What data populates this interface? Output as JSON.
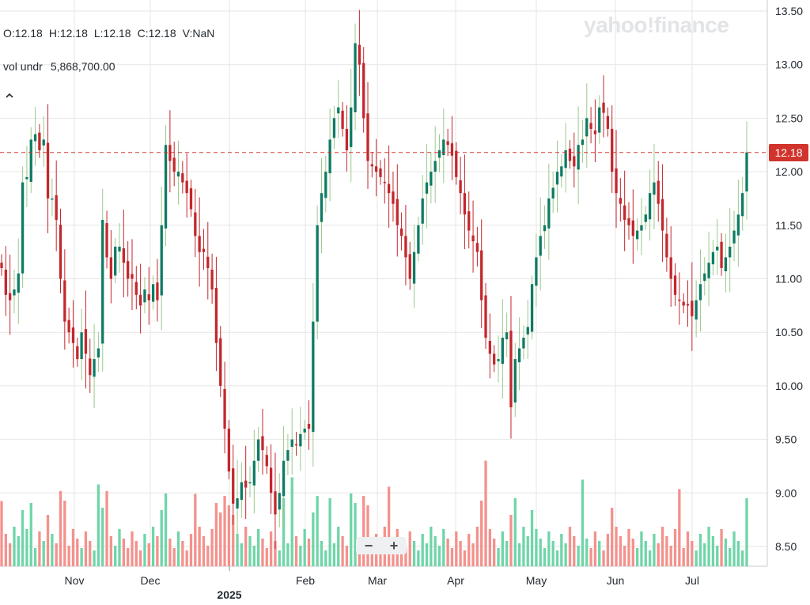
{
  "header": {
    "open": "O:12.18",
    "high": "H:12.18",
    "low": "L:12.18",
    "close": "C:12.18",
    "volume": "V:NaN",
    "vol_label": "vol undr",
    "vol_value": "5,868,700.00",
    "collapse_icon": "chevron-up-icon"
  },
  "watermark": "yahoo!finance",
  "zoom": {
    "minus": "−",
    "plus": "+"
  },
  "colors": {
    "up": "#0f7b63",
    "down": "#c3272c",
    "up_wick": "#9bc98c",
    "down_wick": "#c3272c",
    "vol_up": "#6fd5a8",
    "vol_down": "#f4918c",
    "grid": "#e6e6e6",
    "last_price": "#d0342c"
  },
  "chart_data": {
    "type": "candlestick",
    "y_axis": {
      "ticks": [
        "13.50",
        "13.00",
        "12.50",
        "12.00",
        "11.50",
        "11.00",
        "10.50",
        "10.00",
        "9.50",
        "9.00",
        "8.50"
      ],
      "range": [
        8.35,
        13.6
      ],
      "side": "right"
    },
    "x_axis": {
      "labels": [
        "Nov",
        "Dec",
        "2025",
        "Feb",
        "Mar",
        "Apr",
        "May",
        "Jun",
        "Jul"
      ]
    },
    "last_price": 12.18,
    "last_price_label": "12.18",
    "grid": true,
    "closes": [
      11.1,
      10.85,
      10.8,
      10.9,
      11.05,
      11.9,
      11.95,
      12.3,
      12.35,
      12.2,
      12.3,
      11.75,
      11.75,
      11.55,
      11.0,
      10.6,
      10.5,
      10.4,
      10.25,
      10.5,
      10.3,
      10.1,
      10.25,
      10.35,
      11.55,
      11.2,
      11.0,
      11.3,
      11.3,
      11.15,
      11.0,
      11.0,
      10.85,
      10.75,
      10.9,
      10.8,
      10.95,
      10.8,
      11.5,
      12.25,
      12.1,
      12.0,
      12.0,
      11.9,
      11.8,
      11.65,
      11.4,
      11.25,
      11.25,
      11.1,
      10.9,
      10.4,
      10.0,
      9.6,
      9.2,
      8.9,
      8.95,
      9.1,
      9.05,
      9.1,
      9.3,
      9.5,
      9.4,
      9.25,
      9.0,
      8.8,
      9.0,
      9.3,
      9.4,
      9.5,
      9.45,
      9.55,
      9.6,
      9.6,
      10.6,
      11.5,
      11.8,
      12.0,
      12.3,
      12.5,
      12.6,
      12.4,
      12.2,
      12.6,
      13.2,
      13.0,
      12.5,
      12.1,
      12.05,
      12.0,
      11.95,
      11.9,
      11.8,
      11.7,
      11.5,
      11.4,
      11.2,
      11.0,
      11.25,
      11.5,
      11.75,
      11.9,
      12.0,
      12.1,
      12.2,
      12.3,
      12.25,
      12.15,
      11.95,
      11.8,
      11.6,
      11.45,
      11.35,
      11.25,
      10.8,
      10.45,
      10.3,
      10.2,
      10.25,
      10.45,
      10.5,
      9.8,
      10.25,
      10.35,
      10.45,
      10.55,
      10.95,
      11.2,
      11.4,
      11.5,
      11.75,
      11.85,
      12.0,
      12.05,
      12.2,
      12.1,
      12.05,
      12.25,
      12.3,
      12.5,
      12.4,
      12.35,
      12.6,
      12.55,
      12.4,
      12.0,
      11.8,
      11.7,
      11.55,
      11.5,
      11.4,
      11.45,
      11.5,
      11.6,
      11.8,
      11.9,
      11.7,
      11.45,
      11.2,
      11.0,
      10.85,
      10.8,
      10.75,
      10.75,
      10.65,
      10.8,
      10.95,
      11.05,
      11.15,
      11.25,
      11.3,
      11.1,
      11.2,
      11.3,
      11.45,
      11.6,
      11.8,
      12.18
    ],
    "volume_axis_max": 10000000
  }
}
